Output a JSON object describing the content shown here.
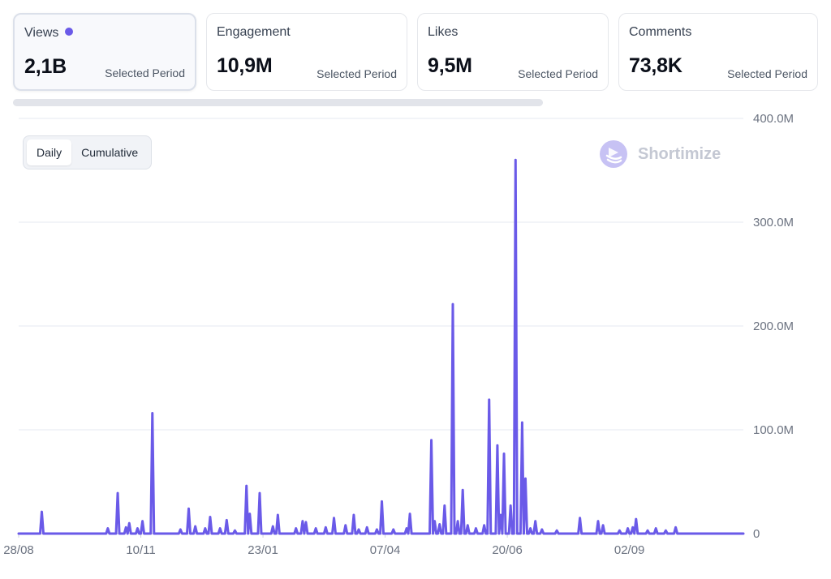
{
  "metrics": [
    {
      "label": "Views",
      "value": "2,1B",
      "period": "Selected Period",
      "active": true
    },
    {
      "label": "Engagement",
      "value": "10,9M",
      "period": "Selected Period",
      "active": false
    },
    {
      "label": "Likes",
      "value": "9,5M",
      "period": "Selected Period",
      "active": false
    },
    {
      "label": "Comments",
      "value": "73,8K",
      "period": "Selected Period",
      "active": false
    }
  ],
  "toggle": {
    "daily": "Daily",
    "cumulative": "Cumulative",
    "selected": "Daily"
  },
  "brand": {
    "name": "Shortimize",
    "icon": "shortimize-logo-icon"
  },
  "colors": {
    "accent": "#6a5ae8",
    "grid": "#e6e8f0",
    "brand": "#c4c8d3"
  },
  "chart_data": {
    "type": "line",
    "title": "",
    "xlabel": "",
    "ylabel": "",
    "ylim": [
      0,
      400000000
    ],
    "y_ticks": [
      {
        "value": 0,
        "label": "0"
      },
      {
        "value": 100000000,
        "label": "100.0M"
      },
      {
        "value": 200000000,
        "label": "200.0M"
      },
      {
        "value": 300000000,
        "label": "300.0M"
      },
      {
        "value": 400000000,
        "label": "400.0M"
      }
    ],
    "x_ticks": [
      "28/08",
      "10/11",
      "23/01",
      "07/04",
      "20/06",
      "02/09"
    ],
    "x_tick_index": [
      0,
      74,
      148,
      222,
      296,
      370
    ],
    "n_points": 440,
    "grid": true,
    "series": [
      {
        "values": [
          [
            14,
            21000000
          ],
          [
            54,
            5000000
          ],
          [
            60,
            39000000
          ],
          [
            65,
            6000000
          ],
          [
            67,
            10000000
          ],
          [
            72,
            5000000
          ],
          [
            75,
            12000000
          ],
          [
            81,
            116000000
          ],
          [
            98,
            4000000
          ],
          [
            103,
            24000000
          ],
          [
            107,
            7000000
          ],
          [
            113,
            5000000
          ],
          [
            116,
            16000000
          ],
          [
            122,
            5000000
          ],
          [
            126,
            13000000
          ],
          [
            131,
            3000000
          ],
          [
            138,
            46000000
          ],
          [
            140,
            19000000
          ],
          [
            146,
            39000000
          ],
          [
            154,
            7000000
          ],
          [
            157,
            18000000
          ],
          [
            168,
            5000000
          ],
          [
            172,
            12000000
          ],
          [
            174,
            11000000
          ],
          [
            180,
            5000000
          ],
          [
            186,
            6000000
          ],
          [
            191,
            15000000
          ],
          [
            198,
            8000000
          ],
          [
            203,
            18000000
          ],
          [
            206,
            4000000
          ],
          [
            211,
            6000000
          ],
          [
            217,
            4000000
          ],
          [
            220,
            31000000
          ],
          [
            227,
            4000000
          ],
          [
            235,
            5000000
          ],
          [
            237,
            19000000
          ],
          [
            250,
            90000000
          ],
          [
            252,
            12000000
          ],
          [
            255,
            9000000
          ],
          [
            258,
            27000000
          ],
          [
            263,
            221000000
          ],
          [
            266,
            12000000
          ],
          [
            269,
            42000000
          ],
          [
            272,
            8000000
          ],
          [
            277,
            5000000
          ],
          [
            282,
            8000000
          ],
          [
            285,
            129000000
          ],
          [
            290,
            85000000
          ],
          [
            292,
            18000000
          ],
          [
            294,
            77000000
          ],
          [
            298,
            27000000
          ],
          [
            301,
            360000000
          ],
          [
            305,
            107000000
          ],
          [
            307,
            53000000
          ],
          [
            310,
            5000000
          ],
          [
            313,
            12000000
          ],
          [
            317,
            4000000
          ],
          [
            326,
            3000000
          ],
          [
            340,
            15000000
          ],
          [
            351,
            12000000
          ],
          [
            354,
            8000000
          ],
          [
            364,
            3000000
          ],
          [
            369,
            5000000
          ],
          [
            372,
            6000000
          ],
          [
            374,
            14000000
          ],
          [
            381,
            3000000
          ],
          [
            386,
            5000000
          ],
          [
            392,
            3000000
          ],
          [
            398,
            6000000
          ]
        ]
      }
    ]
  }
}
